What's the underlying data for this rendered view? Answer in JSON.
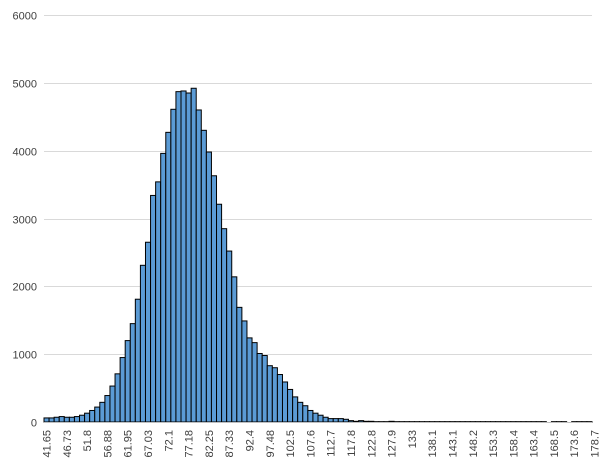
{
  "chart_data": {
    "type": "bar",
    "title": "",
    "xlabel": "",
    "ylabel": "",
    "ylim": [
      0,
      6000
    ],
    "yticks": [
      0,
      1000,
      2000,
      3000,
      4000,
      5000,
      6000
    ],
    "grid": true,
    "bar_color": "#5b9bd5",
    "bar_edge_color": "#000000",
    "x_tick_labels": [
      "41.65",
      "46.73",
      "51.8",
      "56.88",
      "61.95",
      "67.03",
      "72.1",
      "77.18",
      "82.25",
      "87.33",
      "92.4",
      "97.48",
      "102.5",
      "107.6",
      "112.7",
      "117.8",
      "122.8",
      "127.9",
      "133",
      "138.1",
      "143.1",
      "148.2",
      "153.3",
      "158.4",
      "163.4",
      "168.5",
      "173.6",
      "178.7"
    ],
    "bin_count": 108,
    "values": [
      60,
      60,
      70,
      80,
      70,
      70,
      80,
      100,
      130,
      170,
      220,
      290,
      390,
      530,
      710,
      950,
      1200,
      1450,
      1810,
      2310,
      2650,
      3340,
      3540,
      3960,
      4270,
      4610,
      4870,
      4880,
      4850,
      4920,
      4600,
      4300,
      3980,
      3630,
      3210,
      2850,
      2520,
      2140,
      1690,
      1490,
      1240,
      1170,
      1010,
      980,
      830,
      800,
      700,
      590,
      480,
      370,
      290,
      240,
      170,
      130,
      100,
      70,
      50,
      50,
      50,
      40,
      20,
      10,
      20,
      10,
      10,
      5,
      5,
      5,
      10,
      5,
      5,
      5,
      5,
      5,
      5,
      5,
      5,
      5,
      5,
      5,
      5,
      5,
      5,
      5,
      5,
      5,
      5,
      5,
      5,
      5,
      5,
      5,
      5,
      5,
      5,
      5,
      5,
      5,
      5,
      0,
      5,
      5,
      5,
      0,
      5,
      5,
      5,
      5
    ]
  }
}
